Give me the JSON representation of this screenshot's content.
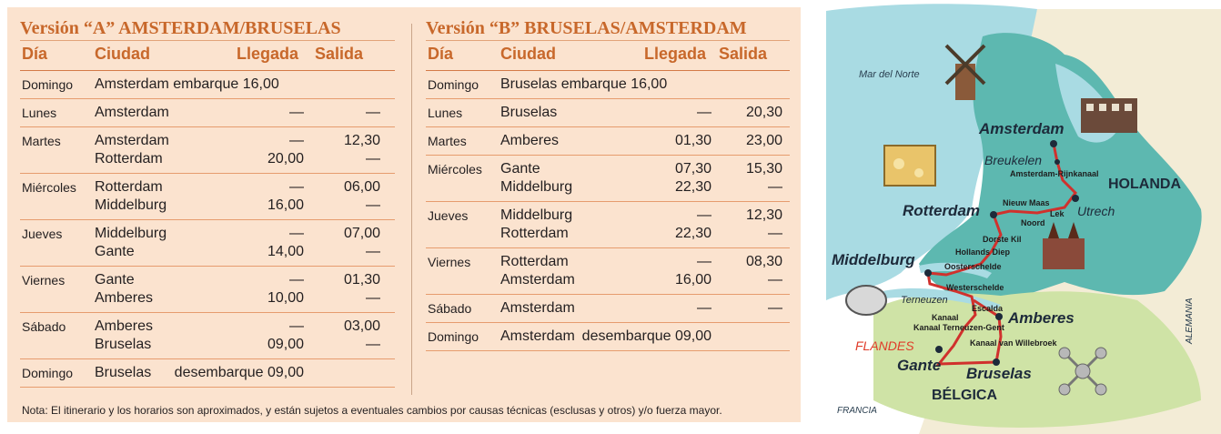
{
  "version_a": {
    "title": "Versión “A” AMSTERDAM/BRUSELAS",
    "headers": {
      "dia": "Día",
      "ciudad": "Ciudad",
      "llegada": "Llegada",
      "salida": "Salida"
    },
    "rows": [
      {
        "dia": "Domingo",
        "ciudad": [
          "Amsterdam  embarque 16,00"
        ],
        "llegada": [
          ""
        ],
        "salida": [
          ""
        ]
      },
      {
        "dia": "Lunes",
        "ciudad": [
          "Amsterdam"
        ],
        "llegada": [
          "—"
        ],
        "salida": [
          "—"
        ]
      },
      {
        "dia": "Martes",
        "ciudad": [
          "Amsterdam",
          "Rotterdam"
        ],
        "llegada": [
          "—",
          "20,00"
        ],
        "salida": [
          "12,30",
          "—"
        ]
      },
      {
        "dia": "Miércoles",
        "ciudad": [
          "Rotterdam",
          "Middelburg"
        ],
        "llegada": [
          "—",
          "16,00"
        ],
        "salida": [
          "06,00",
          "—"
        ]
      },
      {
        "dia": "Jueves",
        "ciudad": [
          "Middelburg",
          "Gante"
        ],
        "llegada": [
          "—",
          "14,00"
        ],
        "salida": [
          "07,00",
          "—"
        ]
      },
      {
        "dia": "Viernes",
        "ciudad": [
          "Gante",
          "Amberes"
        ],
        "llegada": [
          "—",
          "10,00"
        ],
        "salida": [
          "01,30",
          "—"
        ]
      },
      {
        "dia": "Sábado",
        "ciudad": [
          "Amberes",
          "Bruselas"
        ],
        "llegada": [
          "—",
          "09,00"
        ],
        "salida": [
          "03,00",
          "—"
        ]
      },
      {
        "dia": "Domingo",
        "ciudad": [
          "Bruselas"
        ],
        "llegada": [
          "desembarque 09,00"
        ],
        "salida": [
          ""
        ]
      }
    ]
  },
  "version_b": {
    "title": "Versión “B” BRUSELAS/AMSTERDAM",
    "headers": {
      "dia": "Día",
      "ciudad": "Ciudad",
      "llegada": "Llegada",
      "salida": "Salida"
    },
    "rows": [
      {
        "dia": "Domingo",
        "ciudad": [
          "Bruselas    embarque 16,00"
        ],
        "llegada": [
          ""
        ],
        "salida": [
          ""
        ]
      },
      {
        "dia": "Lunes",
        "ciudad": [
          "Bruselas"
        ],
        "llegada": [
          "—"
        ],
        "salida": [
          "20,30"
        ]
      },
      {
        "dia": "Martes",
        "ciudad": [
          "Amberes"
        ],
        "llegada": [
          "01,30"
        ],
        "salida": [
          "23,00"
        ]
      },
      {
        "dia": "Miércoles",
        "ciudad": [
          "Gante",
          "Middelburg"
        ],
        "llegada": [
          "07,30",
          "22,30"
        ],
        "salida": [
          "15,30",
          "—"
        ]
      },
      {
        "dia": "Jueves",
        "ciudad": [
          "Middelburg",
          "Rotterdam"
        ],
        "llegada": [
          "—",
          "22,30"
        ],
        "salida": [
          "12,30",
          "—"
        ]
      },
      {
        "dia": "Viernes",
        "ciudad": [
          "Rotterdam",
          "Amsterdam"
        ],
        "llegada": [
          "—",
          "16,00"
        ],
        "salida": [
          "08,30",
          "—"
        ]
      },
      {
        "dia": "Sábado",
        "ciudad": [
          "Amsterdam"
        ],
        "llegada": [
          "—"
        ],
        "salida": [
          "—"
        ]
      },
      {
        "dia": "Domingo",
        "ciudad": [
          "Amsterdam"
        ],
        "llegada": [
          "desembarque 09,00"
        ],
        "salida": [
          ""
        ]
      }
    ]
  },
  "footnote": "Nota: El itinerario y los horarios son aproximados, y están sujetos a eventuales cambios por causas técnicas (esclusas y otros) y/o fuerza mayor.",
  "map": {
    "sea": "Mar del Norte",
    "cities": {
      "amsterdam": "Amsterdam",
      "rotterdam": "Rotterdam",
      "middelburg": "Middelburg",
      "amberes": "Amberes",
      "gante": "Gante",
      "bruselas": "Bruselas",
      "breukelen": "Breukelen",
      "utrech": "Utrech",
      "terneuzen": "Terneuzen"
    },
    "waterways": {
      "amsterdam_rijnkanaal": "Amsterdam-Rijnkanaal",
      "nieuw_maas": "Nieuw Maas",
      "lek": "Lek",
      "noord": "Noord",
      "dorste_kil": "Dorste Kil",
      "hollands_diep": "Hollands Diep",
      "oosterschelde": "Oosterschelde",
      "westerschelde": "Westerschelde",
      "escalda": "Escalda",
      "kanaal_terneuzen_gent": "Kanaal Terneuzen-Gent",
      "kanaal_willebroek": "Kanaal van Willebroek"
    },
    "regions": {
      "holanda": "HOLANDA",
      "belgica": "BÉLGICA",
      "flandes": "FLANDES",
      "francia": "FRANCIA",
      "alemania": "ALEMANIA"
    },
    "colors": {
      "sea": "#a9dbe3",
      "land": "#f3ecd6",
      "netherlands": "#5db8b0",
      "belgium": "#cfe3a6",
      "route": "#d0312d",
      "flandes": "#e03c2a"
    },
    "icons": [
      "windmill-icon",
      "canal-houses-icon",
      "cheese-icon",
      "cathedral-icon",
      "lace-icon",
      "atomium-icon"
    ]
  }
}
